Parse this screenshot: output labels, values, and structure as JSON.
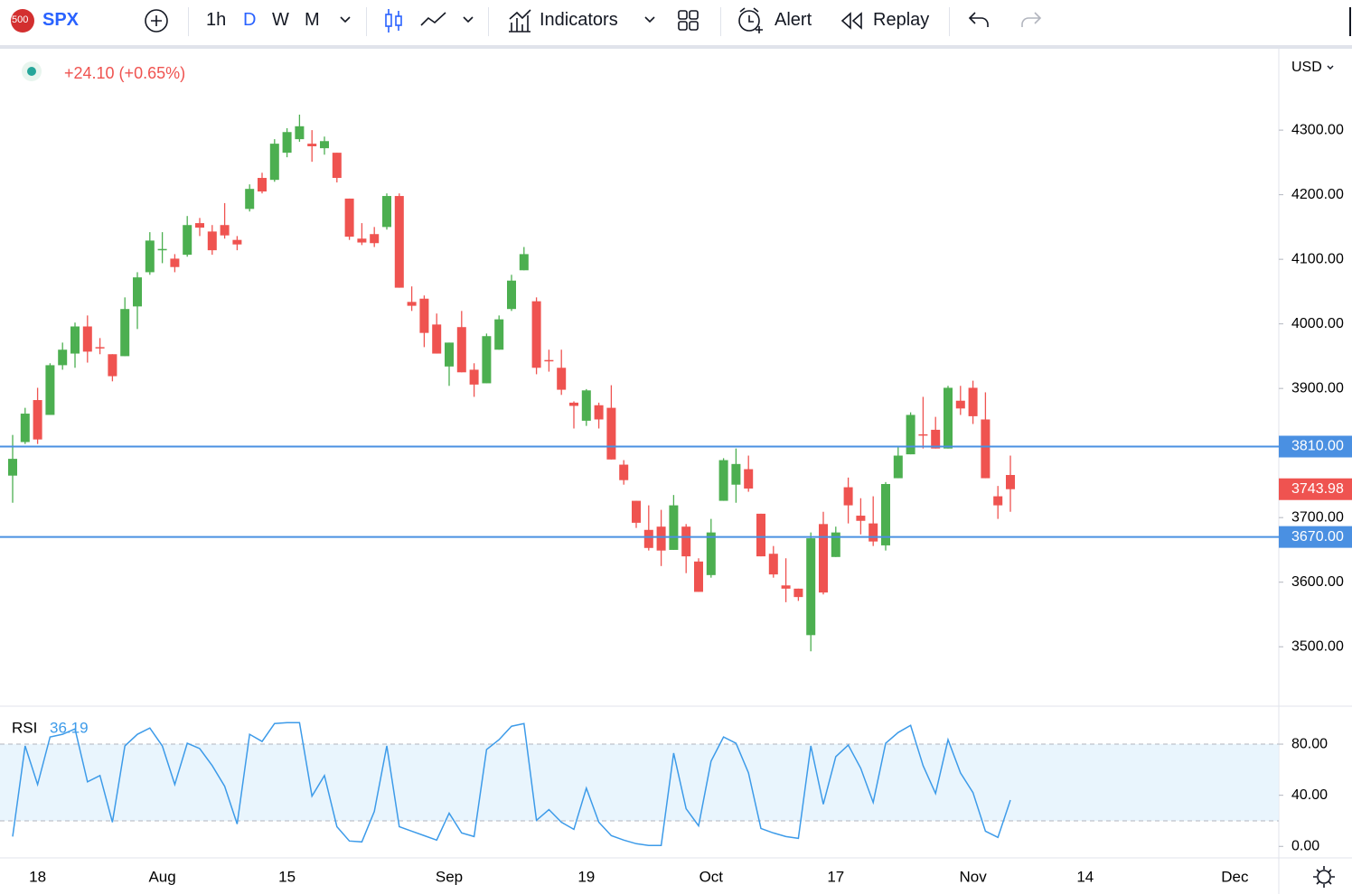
{
  "toolbar": {
    "symbol_badge": "500",
    "symbol": "SPX",
    "intervals": [
      "1h",
      "D",
      "W",
      "M"
    ],
    "indicators": "Indicators",
    "alert": "Alert",
    "replay": "Replay"
  },
  "chart_data": [
    {
      "type": "candlestick",
      "change_label": "+24.10 (+0.65%)",
      "currency": "USD",
      "up_color": "#4caf50",
      "down_color": "#ef5350",
      "categories": [
        null,
        null,
        "18",
        null,
        null,
        null,
        null,
        null,
        null,
        null,
        null,
        null,
        "Aug",
        null,
        null,
        null,
        null,
        null,
        null,
        null,
        null,
        null,
        "15",
        null,
        null,
        null,
        null,
        null,
        null,
        null,
        null,
        null,
        null,
        null,
        null,
        "Sep",
        null,
        null,
        null,
        null,
        null,
        null,
        null,
        null,
        null,
        null,
        "19",
        null,
        null,
        null,
        null,
        null,
        null,
        null,
        null,
        null,
        "Oct",
        null,
        null,
        null,
        null,
        null,
        null,
        null,
        null,
        null,
        "17",
        null,
        null,
        null,
        null,
        null,
        null,
        null,
        null,
        null,
        null,
        "Nov",
        null,
        null,
        null,
        null,
        null,
        null,
        null,
        null,
        "14",
        null,
        null,
        null,
        null,
        null,
        null,
        null,
        null,
        null,
        null,
        null,
        "Dec",
        null,
        null,
        null
      ],
      "open": [
        3765,
        3817,
        3882,
        3859,
        3936,
        3954,
        3996,
        3964,
        3953,
        3950,
        4027,
        4080,
        4114,
        4101,
        4107,
        4156,
        4143,
        4153,
        4130,
        4178,
        4226,
        4223,
        4265,
        4286,
        4279,
        4272,
        4265,
        4194,
        4132,
        4139,
        4150,
        4198,
        4034,
        4039,
        3999,
        3934,
        3995,
        3929,
        3908,
        3960,
        4023,
        4083,
        4035,
        3944,
        3932,
        3878,
        3850,
        3874,
        3870,
        3782,
        3726,
        3681,
        3686,
        3650,
        3686,
        3632,
        3611,
        3726,
        3751,
        3775,
        3706,
        3644,
        3595,
        3590,
        3518,
        3690,
        3639,
        3747,
        3703,
        3691,
        3657,
        3761,
        3798,
        3829,
        3836,
        3807,
        3881,
        3901,
        3852,
        3733,
        3766,
        null,
        null,
        null,
        null,
        null,
        null,
        null,
        null,
        null,
        null,
        null,
        null,
        null,
        null,
        null,
        null,
        null,
        null,
        null,
        null,
        null
      ],
      "high": [
        3828,
        3870,
        3901,
        3939,
        3971,
        4002,
        4013,
        3978,
        3953,
        4041,
        4080,
        4142,
        4142,
        4108,
        4167,
        4164,
        4153,
        4187,
        4136,
        4216,
        4234,
        4286,
        4303,
        4324,
        4300,
        4290,
        4265,
        4194,
        4156,
        4150,
        4202,
        4202,
        4058,
        4044,
        4016,
        3971,
        4020,
        3939,
        3985,
        4013,
        4076,
        4119,
        4041,
        3960,
        3960,
        3880,
        3899,
        3878,
        3905,
        3789,
        3726,
        3719,
        3712,
        3735,
        3690,
        3637,
        3698,
        3792,
        3807,
        3796,
        3706,
        3656,
        3637,
        3590,
        3677,
        3709,
        3686,
        3762,
        3730,
        3733,
        3755,
        3810,
        3863,
        3887,
        3856,
        3904,
        3904,
        3912,
        3894,
        3749,
        3796,
        null,
        null,
        null,
        null,
        null,
        null,
        null,
        null,
        null,
        null,
        null,
        null,
        null,
        null,
        null,
        null,
        null,
        null,
        null,
        null,
        null
      ],
      "low": [
        3723,
        3814,
        3814,
        3859,
        3929,
        3932,
        3940,
        3953,
        3911,
        3950,
        3992,
        4076,
        4094,
        4080,
        4104,
        4136,
        4107,
        4132,
        4114,
        4174,
        4202,
        4220,
        4258,
        4282,
        4251,
        4262,
        4219,
        4130,
        4122,
        4119,
        4146,
        4056,
        4020,
        3964,
        3954,
        3904,
        3925,
        3887,
        3908,
        3960,
        4020,
        4083,
        3922,
        3926,
        3890,
        3838,
        3842,
        3838,
        3790,
        3751,
        3684,
        3649,
        3625,
        3650,
        3614,
        3585,
        3607,
        3726,
        3723,
        3740,
        3640,
        3607,
        3569,
        3571,
        3493,
        3581,
        3639,
        3691,
        3674,
        3656,
        3649,
        3761,
        3798,
        3807,
        3807,
        3807,
        3859,
        3845,
        3761,
        3698,
        3709,
        null,
        null,
        null,
        null,
        null,
        null,
        null,
        null,
        null,
        null,
        null,
        null,
        null,
        null,
        null,
        null,
        null,
        null,
        null,
        null,
        null
      ],
      "close": [
        3791,
        3861,
        3821,
        3936,
        3960,
        3996,
        3957,
        3963,
        3919,
        4023,
        4072,
        4129,
        4116,
        4088,
        4153,
        4149,
        4114,
        4137,
        4123,
        4209,
        4205,
        4279,
        4297,
        4306,
        4275,
        4283,
        4226,
        4135,
        4126,
        4125,
        4198,
        4056,
        4028,
        3986,
        3954,
        3971,
        3925,
        3906,
        3981,
        4007,
        4067,
        4108,
        3932,
        3943,
        3898,
        3873,
        3897,
        3852,
        3790,
        3758,
        3692,
        3653,
        3649,
        3719,
        3640,
        3585,
        3677,
        3789,
        3783,
        3745,
        3640,
        3612,
        3590,
        3577,
        3668,
        3584,
        3677,
        3719,
        3695,
        3663,
        3752,
        3796,
        3859,
        3828,
        3807,
        3901,
        3869,
        3857,
        3761,
        3719,
        3743.98,
        null,
        null,
        null,
        null,
        null,
        null,
        null,
        null,
        null,
        null,
        null,
        null,
        null,
        null,
        null,
        null,
        null,
        null,
        null,
        null,
        null
      ],
      "ylim": [
        3408,
        4426
      ],
      "yticks": [
        {
          "value": 3500,
          "label": "3500.00"
        },
        {
          "value": 3600,
          "label": "3600.00"
        },
        {
          "value": 3700,
          "label": "3700.00"
        },
        {
          "value": 3800,
          "label": "3800.00"
        },
        {
          "value": 3900,
          "label": "3900.00"
        },
        {
          "value": 4000,
          "label": "4000.00"
        },
        {
          "value": 4100,
          "label": "4100.00"
        },
        {
          "value": 4200,
          "label": "4200.00"
        },
        {
          "value": 4300,
          "label": "4300.00"
        }
      ],
      "price_lines": [
        {
          "value": 3810,
          "label": "3810.00"
        },
        {
          "value": 3670,
          "label": "3670.00"
        }
      ],
      "price_line_color": "#4a90e2"
    },
    {
      "type": "line",
      "title": "RSI",
      "color": "#3d9be9",
      "band": [
        20,
        80
      ],
      "values": [
        7.7,
        78.6,
        48.4,
        85.6,
        87.7,
        91.9,
        50.5,
        55.4,
        18.9,
        78.6,
        87.7,
        92.6,
        78.6,
        48.4,
        80.7,
        76.5,
        63.2,
        47,
        17.5,
        87.7,
        82.1,
        96.1,
        96.8,
        96.8,
        39.3,
        55.4,
        15.4,
        4.2,
        3.5,
        27.4,
        78.6,
        15.4,
        11.9,
        8.4,
        4.9,
        26,
        10.5,
        7.7,
        75.8,
        83.5,
        94,
        96.1,
        20.4,
        28.8,
        18.9,
        13.3,
        45.6,
        18.9,
        8.4,
        4.9,
        2.1,
        0.7,
        0.7,
        73,
        29.5,
        16.1,
        66.7,
        85.6,
        80.7,
        57.5,
        14,
        10.5,
        7.7,
        6.3,
        78.6,
        33,
        70.2,
        79.3,
        61.1,
        34.4,
        80.7,
        89.1,
        94.7,
        63.2,
        41.4,
        83.5,
        57.5,
        42.1,
        11.9,
        7,
        36.19,
        null,
        null,
        null,
        null,
        null,
        null,
        null,
        null,
        null,
        null,
        null,
        null,
        null,
        null,
        null,
        null,
        null,
        null,
        null,
        null,
        null
      ],
      "ylim": [
        -9,
        109
      ],
      "yticks": [
        {
          "value": 0,
          "label": "0.00"
        },
        {
          "value": 40,
          "label": "40.00"
        },
        {
          "value": 80,
          "label": "80.00"
        }
      ]
    }
  ]
}
